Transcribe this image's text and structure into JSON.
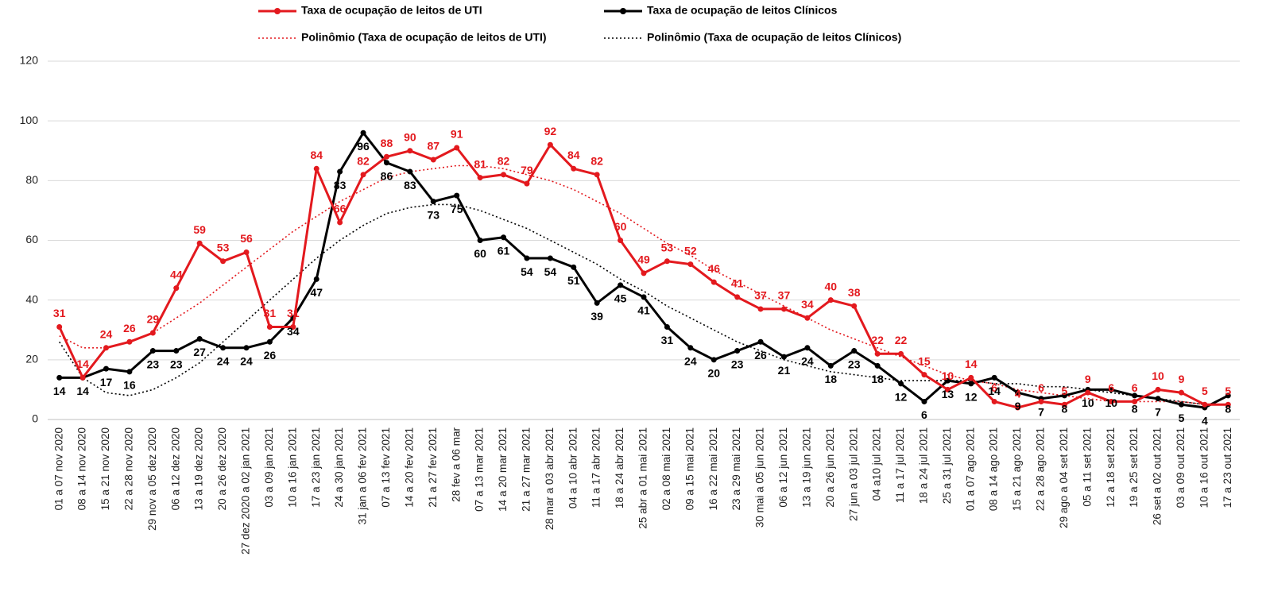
{
  "chart_data": {
    "type": "line",
    "categories": [
      "01 a 07 nov 2020",
      "08 a 14 nov 2020",
      "15 a 21 nov 2020",
      "22 a 28 nov 2020",
      "29 nov a 05 dez 2020",
      "06 a 12 dez 2020",
      "13 a 19 dez 2020",
      "20 a 26 dez 2020",
      "27 dez 2020 a 02 jan 2021",
      "03 a 09 jan 2021",
      "10 a 16 jan 2021",
      "17 a 23 jan 2021",
      "24 a 30 jan 2021",
      "31 jan a 06 fev 2021",
      "07 a 13 fev 2021",
      "14 a 20 fev 2021",
      "21 a 27 fev 2021",
      "28 fev a 06 mar",
      "07 a 13 mar 2021",
      "14 a 20 mar 2021",
      "21 a 27 mar 2021",
      "28 mar a 03 abr 2021",
      "04 a 10 abr 2021",
      "11 a 17 abr 2021",
      "18 a 24 abr 2021",
      "25 abr a 01 mai 2021",
      "02 a 08 mai 2021",
      "09 a 15 mai 2021",
      "16 a 22 mai 2021",
      "23 a 29 mai 2021",
      "30 mai a 05 jun 2021",
      "06 a 12 jun 2021",
      "13 a 19 jun 2021",
      "20 a 26 jun 2021",
      "27 jun a 03 jul 2021",
      "04 a10 jul 2021",
      "11 a 17 jul 2021",
      "18 a 24 jul 2021",
      "25 a 31 jul 2021",
      "01 a 07 ago 2021",
      "08 a 14 ago 2021",
      "15 a 21 ago 2021",
      "22 a 28 ago 2021",
      "29 ago a 04 set 2021",
      "05 a 11 set 2021",
      "12 a 18 set 2021",
      "19 a 25 set 2021",
      "26 set a 02 out 2021",
      "03 a 09 out 2021",
      "10 a 16 out 2021",
      "17 a 23 out 2021"
    ],
    "series": [
      {
        "name": "Taxa de ocupação de leitos de UTI",
        "color": "#e3191e",
        "line_style": "solid",
        "markers": true,
        "data_labels": true,
        "values": [
          31,
          14,
          24,
          26,
          29,
          44,
          59,
          53,
          56,
          31,
          31,
          84,
          66,
          82,
          88,
          90,
          87,
          91,
          81,
          82,
          79,
          92,
          84,
          82,
          60,
          49,
          53,
          52,
          46,
          41,
          37,
          37,
          34,
          40,
          38,
          22,
          22,
          15,
          10,
          14,
          6,
          4,
          6,
          5,
          9,
          6,
          6,
          10,
          9,
          5,
          5
        ]
      },
      {
        "name": "Taxa de ocupação de leitos Clínicos",
        "color": "#000000",
        "line_style": "solid",
        "markers": true,
        "data_labels": true,
        "values": [
          14,
          14,
          17,
          16,
          23,
          23,
          27,
          24,
          24,
          26,
          34,
          47,
          83,
          96,
          86,
          83,
          73,
          75,
          60,
          61,
          54,
          54,
          51,
          39,
          45,
          41,
          31,
          24,
          20,
          23,
          26,
          21,
          24,
          18,
          23,
          18,
          12,
          6,
          13,
          12,
          14,
          9,
          7,
          8,
          10,
          10,
          8,
          7,
          5,
          4,
          8
        ]
      },
      {
        "name": "Polinômio (Taxa de ocupação de leitos de UTI)",
        "color": "#e3191e",
        "line_style": "dotted",
        "markers": false,
        "data_labels": false,
        "values": [
          28,
          24,
          24,
          26,
          29,
          34,
          39,
          45,
          51,
          57,
          63,
          68,
          73,
          77,
          81,
          83,
          84,
          85,
          85,
          84,
          82,
          80,
          77,
          73,
          69,
          64,
          59,
          55,
          50,
          46,
          42,
          38,
          34,
          30,
          27,
          24,
          21,
          18,
          15,
          13,
          12,
          10,
          9,
          8,
          7,
          6,
          6,
          6,
          6,
          5,
          5
        ]
      },
      {
        "name": "Polinômio (Taxa de ocupação de leitos Clínicos)",
        "color": "#000000",
        "line_style": "dotted",
        "markers": false,
        "data_labels": false,
        "values": [
          26,
          14,
          9,
          8,
          10,
          14,
          19,
          26,
          33,
          40,
          47,
          54,
          60,
          65,
          69,
          71,
          72,
          72,
          70,
          67,
          64,
          60,
          56,
          52,
          47,
          43,
          38,
          34,
          30,
          26,
          23,
          20,
          18,
          16,
          15,
          14,
          13,
          13,
          13,
          13,
          12,
          12,
          11,
          11,
          10,
          9,
          8,
          7,
          6,
          5,
          5
        ]
      }
    ],
    "ylim": [
      0,
      120
    ],
    "yticks": [
      0,
      20,
      40,
      60,
      80,
      100,
      120
    ],
    "grid": true
  }
}
